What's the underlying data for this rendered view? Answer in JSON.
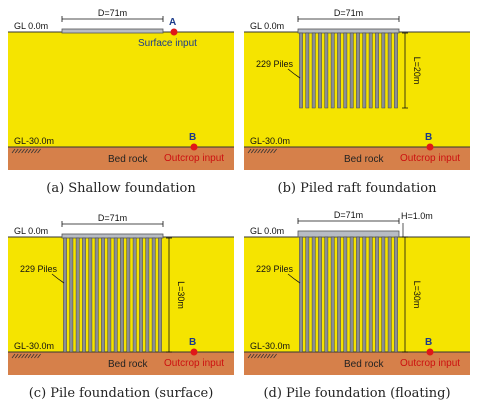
{
  "panels": [
    {
      "caption": "(a) Shallow foundation",
      "gl_top": "GL 0.0m",
      "gl_bottom": "GL-30.0m",
      "width_label": "D=71m",
      "bed_rock": "Bed rock",
      "point_top": "A",
      "top_input": "Surface input",
      "point_bottom": "B",
      "bottom_input": "Outcrop input",
      "foundation_type": "shallow"
    },
    {
      "caption": "(b) Piled raft foundation",
      "gl_top": "GL 0.0m",
      "gl_bottom": "GL-30.0m",
      "width_label": "D=71m",
      "piles_label": "229 Piles",
      "length_label": "L=20m",
      "bed_rock": "Bed rock",
      "point_bottom": "B",
      "bottom_input": "Outcrop input",
      "foundation_type": "piled-raft",
      "pile_count_drawn": 16,
      "pile_length_m": 20
    },
    {
      "caption": "(c) Pile foundation (surface)",
      "gl_top": "GL 0.0m",
      "gl_bottom": "GL-30.0m",
      "width_label": "D=71m",
      "piles_label": "229 Piles",
      "length_label": "L=30m",
      "bed_rock": "Bed rock",
      "point_bottom": "B",
      "bottom_input": "Outcrop input",
      "foundation_type": "pile-surface",
      "pile_count_drawn": 16,
      "pile_length_m": 30
    },
    {
      "caption": "(d) Pile foundation (floating)",
      "gl_top": "GL 0.0m",
      "gl_bottom": "GL-30.0m",
      "width_label": "D=71m",
      "height_label": "H=1.0m",
      "piles_label": "229 Piles",
      "length_label": "L=30m",
      "bed_rock": "Bed rock",
      "point_bottom": "B",
      "bottom_input": "Outcrop input",
      "foundation_type": "pile-floating",
      "pile_count_drawn": 16,
      "pile_length_m": 30
    }
  ],
  "colors": {
    "soil": "#f5e400",
    "rock": "#d6804a",
    "pile": "#8a8e96",
    "raft": "#b8bcc4",
    "point": "#e01818"
  }
}
